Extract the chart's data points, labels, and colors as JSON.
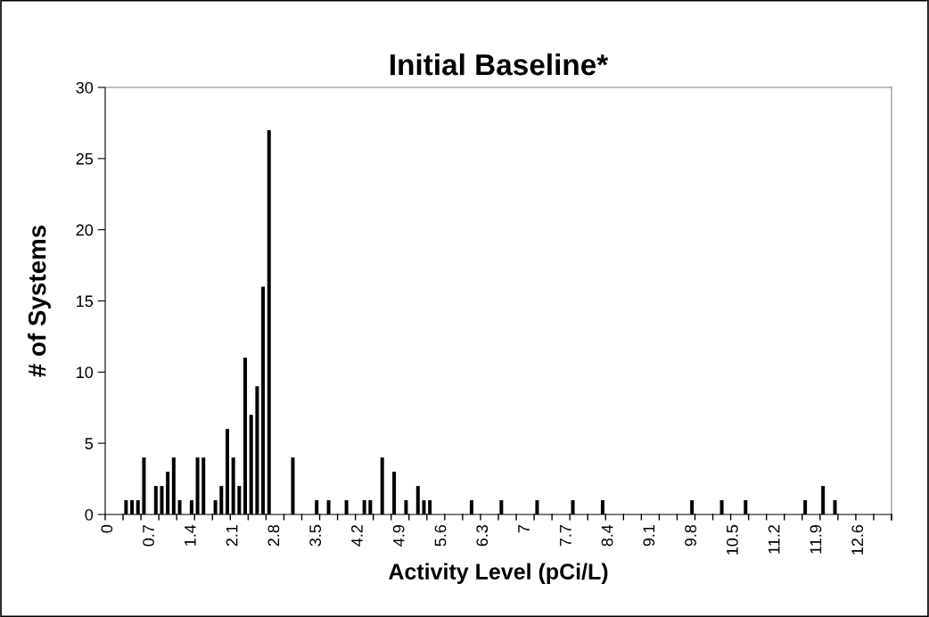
{
  "chart_data": {
    "type": "bar",
    "title": "Initial Baseline*",
    "xlabel": "Activity Level (pCi/L)",
    "ylabel": "# of Systems",
    "categories": [
      "0",
      null,
      null,
      null,
      null,
      null,
      null,
      "0.7",
      null,
      null,
      null,
      null,
      null,
      null,
      "1.4",
      null,
      null,
      null,
      null,
      null,
      null,
      "2.1",
      null,
      null,
      null,
      null,
      null,
      null,
      "2.8",
      null,
      null,
      null,
      null,
      null,
      null,
      "3.5",
      null,
      null,
      null,
      null,
      null,
      null,
      "4.2",
      null,
      null,
      null,
      null,
      null,
      null,
      "4.9",
      null,
      null,
      null,
      null,
      null,
      null,
      "5.6",
      null,
      null,
      null,
      null,
      null,
      null,
      "6.3",
      null,
      null,
      null,
      null,
      null,
      null,
      "7",
      null,
      null,
      null,
      null,
      null,
      null,
      "7.7",
      null,
      null,
      null,
      null,
      null,
      null,
      "8.4",
      null,
      null,
      null,
      null,
      null,
      null,
      "9.1",
      null,
      null,
      null,
      null,
      null,
      null,
      "9.8",
      null,
      null,
      null,
      null,
      null,
      null,
      "10.5",
      null,
      null,
      null,
      null,
      null,
      null,
      "11.2",
      null,
      null,
      null,
      null,
      null,
      null,
      "11.9",
      null,
      null,
      null,
      null,
      null,
      null,
      "12.6",
      null,
      null,
      null,
      null,
      null
    ],
    "values": [
      0,
      0,
      0,
      1,
      1,
      1,
      4,
      0,
      2,
      2,
      3,
      4,
      1,
      0,
      1,
      4,
      4,
      0,
      1,
      2,
      6,
      4,
      2,
      11,
      7,
      9,
      16,
      27,
      0,
      0,
      0,
      4,
      0,
      0,
      0,
      1,
      0,
      1,
      0,
      0,
      1,
      0,
      0,
      1,
      1,
      0,
      4,
      0,
      3,
      0,
      1,
      0,
      2,
      1,
      1,
      0,
      0,
      0,
      0,
      0,
      0,
      1,
      0,
      0,
      0,
      0,
      1,
      0,
      0,
      0,
      0,
      0,
      1,
      0,
      0,
      0,
      0,
      0,
      1,
      0,
      0,
      0,
      0,
      1,
      0,
      0,
      0,
      0,
      0,
      0,
      0,
      0,
      0,
      0,
      0,
      0,
      0,
      0,
      1,
      0,
      0,
      0,
      0,
      1,
      0,
      0,
      0,
      1,
      0,
      0,
      0,
      0,
      0,
      0,
      0,
      0,
      0,
      1,
      0,
      0,
      2,
      0,
      1,
      0,
      0,
      0,
      0,
      0,
      0,
      0,
      0,
      0
    ],
    "color": "#000000",
    "ylim": [
      0,
      30
    ],
    "yticks": [
      0,
      5,
      10,
      15,
      20,
      25,
      30
    ],
    "grid": false,
    "legend": false
  }
}
